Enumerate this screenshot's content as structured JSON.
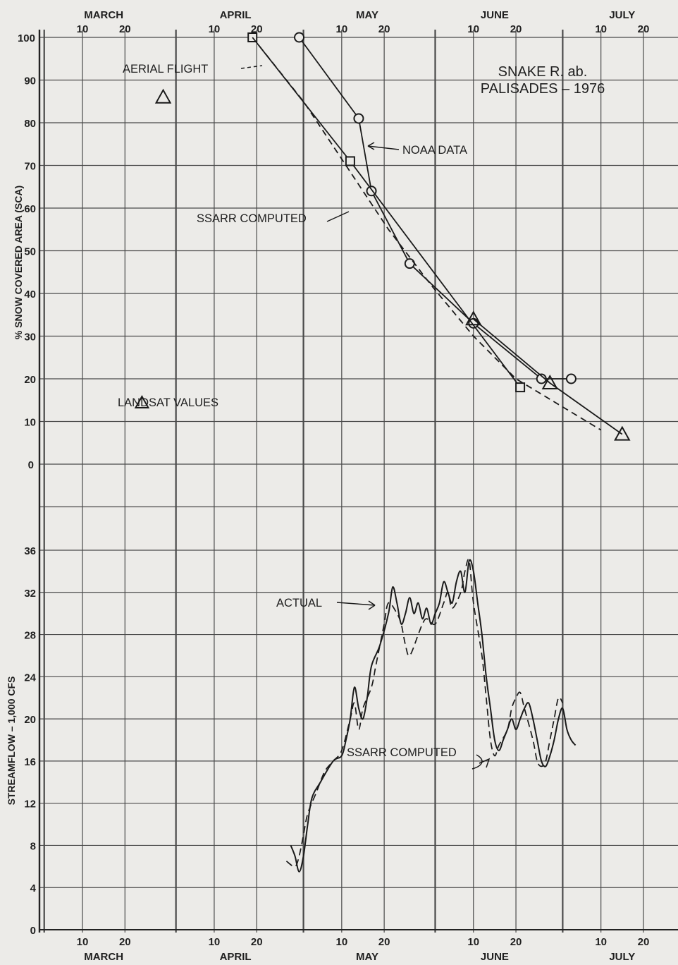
{
  "chart_data": [
    {
      "id": "sca",
      "type": "line",
      "title": "SNAKE R. ab.\nPALISADES – 1976",
      "ylabel": "% SNOW COVERED AREA (SCA)",
      "ylim": [
        0,
        100
      ],
      "yticks": [
        0,
        10,
        20,
        30,
        40,
        50,
        60,
        70,
        80,
        90,
        100
      ],
      "months_top": [
        "MARCH",
        "APRIL",
        "MAY",
        "JUNE",
        "JULY"
      ],
      "day_ticks": [
        "10",
        "20"
      ],
      "grid": true,
      "series": [
        {
          "key": "noaa",
          "name": "NOAA DATA",
          "style": "solid",
          "marker": "circle",
          "points": [
            [
              "04-30",
              100
            ],
            [
              "05-14",
              81
            ],
            [
              "05-17",
              64
            ],
            [
              "05-26",
              47
            ],
            [
              "06-10",
              33
            ],
            [
              "06-26",
              20
            ],
            [
              "07-03",
              20
            ]
          ]
        },
        {
          "key": "aerial",
          "name": "AERIAL FLIGHT",
          "style": "solid",
          "marker": "square",
          "points": [
            [
              "04-19",
              100
            ],
            [
              "05-12",
              71
            ],
            [
              "06-21",
              18
            ]
          ]
        },
        {
          "key": "landsat",
          "name": "LANDSAT VALUES",
          "style": "solid",
          "marker": "triangle",
          "points": [
            [
              "03-29",
              86
            ],
            [
              "06-10",
              34
            ],
            [
              "06-28",
              19
            ],
            [
              "07-15",
              7
            ]
          ]
        },
        {
          "key": "ssarr_sca",
          "name": "SSARR COMPUTED",
          "style": "dashed",
          "marker": "none",
          "points": [
            [
              "04-19",
              100
            ],
            [
              "05-01",
              85
            ],
            [
              "05-11",
              70
            ],
            [
              "05-21",
              55
            ],
            [
              "05-31",
              42
            ],
            [
              "06-10",
              30
            ],
            [
              "06-20",
              20
            ],
            [
              "06-30",
              14
            ],
            [
              "07-10",
              8
            ]
          ]
        }
      ],
      "annotations": [
        "AERIAL FLIGHT",
        "NOAA DATA",
        "SSARR COMPUTED",
        "LANDSAT VALUES"
      ]
    },
    {
      "id": "flow",
      "type": "line",
      "ylabel": "STREAMFLOW – 1,000 CFS",
      "ylim": [
        0,
        36
      ],
      "yticks": [
        0,
        4,
        8,
        12,
        16,
        20,
        24,
        28,
        32,
        36
      ],
      "months_bottom": [
        "MARCH",
        "APRIL",
        "MAY",
        "JUNE",
        "JULY"
      ],
      "day_ticks": [
        "10",
        "20"
      ],
      "grid": true,
      "series": [
        {
          "key": "actual",
          "name": "ACTUAL",
          "style": "solid",
          "points": [
            [
              "04-28",
              8
            ],
            [
              "04-29",
              7
            ],
            [
              "04-30",
              5.5
            ],
            [
              "05-01",
              7
            ],
            [
              "05-02",
              10
            ],
            [
              "05-03",
              12.5
            ],
            [
              "05-05",
              14
            ],
            [
              "05-08",
              16
            ],
            [
              "05-10",
              16.5
            ],
            [
              "05-11",
              18
            ],
            [
              "05-12",
              20
            ],
            [
              "05-13",
              23
            ],
            [
              "05-14",
              21
            ],
            [
              "05-15",
              20
            ],
            [
              "05-16",
              22
            ],
            [
              "05-17",
              25
            ],
            [
              "05-19",
              27
            ],
            [
              "05-21",
              30
            ],
            [
              "05-22",
              32.5
            ],
            [
              "05-23",
              31
            ],
            [
              "05-24",
              29
            ],
            [
              "05-25",
              30
            ],
            [
              "05-26",
              31.5
            ],
            [
              "05-27",
              30
            ],
            [
              "05-28",
              31
            ],
            [
              "05-29",
              29.5
            ],
            [
              "05-30",
              30.5
            ],
            [
              "05-31",
              29
            ],
            [
              "06-01",
              30
            ],
            [
              "06-02",
              31
            ],
            [
              "06-03",
              33
            ],
            [
              "06-04",
              32
            ],
            [
              "06-05",
              31
            ],
            [
              "06-06",
              33
            ],
            [
              "06-07",
              34
            ],
            [
              "06-08",
              32
            ],
            [
              "06-09",
              35
            ],
            [
              "06-10",
              34
            ],
            [
              "06-11",
              31
            ],
            [
              "06-12",
              28
            ],
            [
              "06-13",
              24
            ],
            [
              "06-14",
              21
            ],
            [
              "06-15",
              18
            ],
            [
              "06-16",
              17
            ],
            [
              "06-17",
              18
            ],
            [
              "06-18",
              19
            ],
            [
              "06-19",
              20
            ],
            [
              "06-20",
              19
            ],
            [
              "06-21",
              20
            ],
            [
              "06-22",
              21
            ],
            [
              "06-23",
              21.5
            ],
            [
              "06-24",
              20
            ],
            [
              "06-25",
              18
            ],
            [
              "06-26",
              16
            ],
            [
              "06-27",
              15.5
            ],
            [
              "06-28",
              16.5
            ],
            [
              "06-29",
              18
            ],
            [
              "06-30",
              20
            ],
            [
              "07-01",
              21
            ],
            [
              "07-02",
              19
            ],
            [
              "07-03",
              18
            ],
            [
              "07-04",
              17.5
            ]
          ]
        },
        {
          "key": "ssarr_flow",
          "name": "SSARR COMPUTED",
          "style": "dashed",
          "points": [
            [
              "04-27",
              6.5
            ],
            [
              "04-29",
              6
            ],
            [
              "04-30",
              7
            ],
            [
              "05-01",
              9
            ],
            [
              "05-02",
              11
            ],
            [
              "05-04",
              13
            ],
            [
              "05-06",
              15
            ],
            [
              "05-08",
              16
            ],
            [
              "05-10",
              17
            ],
            [
              "05-12",
              20
            ],
            [
              "05-13",
              21.5
            ],
            [
              "05-14",
              19
            ],
            [
              "05-15",
              21
            ],
            [
              "05-17",
              23
            ],
            [
              "05-18",
              25
            ],
            [
              "05-19",
              27
            ],
            [
              "05-20",
              29
            ],
            [
              "05-21",
              31
            ],
            [
              "05-23",
              30
            ],
            [
              "05-24",
              29
            ],
            [
              "05-25",
              27
            ],
            [
              "05-26",
              26
            ],
            [
              "05-28",
              28
            ],
            [
              "05-29",
              29
            ],
            [
              "05-30",
              29.5
            ],
            [
              "06-01",
              29
            ],
            [
              "06-03",
              31
            ],
            [
              "06-04",
              32
            ],
            [
              "06-05",
              30.5
            ],
            [
              "06-07",
              32
            ],
            [
              "06-08",
              34
            ],
            [
              "06-09",
              35
            ],
            [
              "06-10",
              31
            ],
            [
              "06-12",
              26
            ],
            [
              "06-13",
              22
            ],
            [
              "06-14",
              18
            ],
            [
              "06-15",
              16.5
            ],
            [
              "06-16",
              17.5
            ],
            [
              "06-18",
              19
            ],
            [
              "06-19",
              21
            ],
            [
              "06-20",
              22
            ],
            [
              "06-21",
              22.5
            ],
            [
              "06-22",
              21
            ],
            [
              "06-24",
              18
            ],
            [
              "06-25",
              16
            ],
            [
              "06-26",
              15.5
            ],
            [
              "06-27",
              16
            ],
            [
              "06-28",
              18
            ],
            [
              "06-29",
              20
            ],
            [
              "06-30",
              22
            ],
            [
              "07-01",
              21.5
            ]
          ]
        }
      ],
      "annotations": [
        "ACTUAL",
        "SSARR COMPUTED"
      ]
    }
  ]
}
